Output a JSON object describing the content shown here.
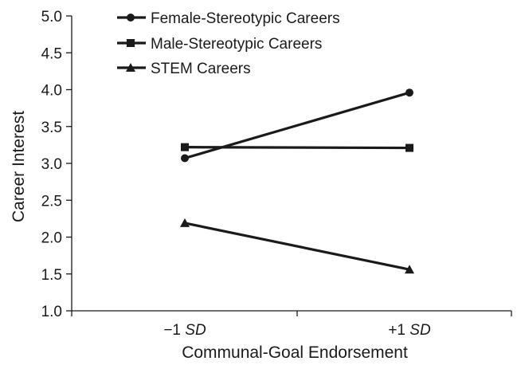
{
  "chart_data": {
    "type": "line",
    "title": "",
    "xlabel": "Communal-Goal Endorsement",
    "ylabel": "Career Interest",
    "ylim": [
      1.0,
      5.0
    ],
    "yticks": [
      "1.0",
      "1.5",
      "2.0",
      "2.5",
      "3.0",
      "3.5",
      "4.0",
      "4.5",
      "5.0"
    ],
    "categories": [
      {
        "main": "−1 ",
        "italic": "SD"
      },
      {
        "main": "+1 ",
        "italic": "SD"
      }
    ],
    "grid": false,
    "legend_position": "top-left",
    "series": [
      {
        "name": "Female-Stereotypic Careers",
        "marker": "circle",
        "values": [
          3.07,
          3.96
        ]
      },
      {
        "name": "Male-Stereotypic Careers",
        "marker": "square",
        "values": [
          3.22,
          3.21
        ]
      },
      {
        "name": "STEM Careers",
        "marker": "triangle",
        "values": [
          2.19,
          1.56
        ]
      }
    ],
    "colors": {
      "line": "#1a1a1a",
      "axis": "#1a1a1a"
    }
  }
}
